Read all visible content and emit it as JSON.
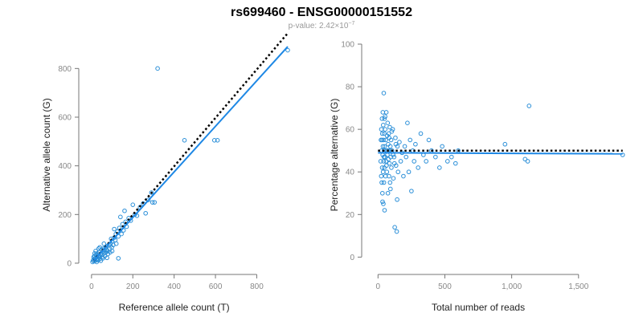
{
  "title": "rs699460 - ENSG00000151552",
  "subtitle": {
    "prefix": "p-value: 2.42×10",
    "exponent": "−7"
  },
  "colors": {
    "points": "#2b8fd8",
    "fit": "#1e88e5",
    "reference": "#000000",
    "axis": "#777777",
    "tick_text": "#888888",
    "subtitle": "#999999"
  },
  "chart_data": [
    {
      "type": "scatter",
      "title": "",
      "xlabel": "Reference allele count (T)",
      "ylabel": "Alternative allele count (G)",
      "xlim": [
        -15,
        950
      ],
      "ylim": [
        -10,
        900
      ],
      "xticks": [
        0,
        200,
        400,
        600,
        800
      ],
      "xtick_labels": [
        "0",
        "200",
        "400",
        "600",
        "800"
      ],
      "yticks": [
        0,
        200,
        400,
        600,
        800
      ],
      "ytick_labels": [
        "0",
        "200",
        "400",
        "600",
        "800"
      ],
      "grid": false,
      "fit_line": {
        "x": [
          10,
          950
        ],
        "y": [
          10,
          890
        ]
      },
      "reference_line": {
        "x": [
          10,
          950
        ],
        "y": [
          10,
          945
        ]
      },
      "points": [
        [
          5,
          5
        ],
        [
          8,
          12
        ],
        [
          10,
          25
        ],
        [
          12,
          8
        ],
        [
          14,
          18
        ],
        [
          15,
          30
        ],
        [
          18,
          10
        ],
        [
          20,
          22
        ],
        [
          22,
          35
        ],
        [
          25,
          15
        ],
        [
          26,
          28
        ],
        [
          28,
          40
        ],
        [
          30,
          20
        ],
        [
          32,
          12
        ],
        [
          33,
          32
        ],
        [
          35,
          25
        ],
        [
          38,
          45
        ],
        [
          40,
          30
        ],
        [
          42,
          18
        ],
        [
          45,
          38
        ],
        [
          48,
          55
        ],
        [
          50,
          35
        ],
        [
          52,
          25
        ],
        [
          55,
          48
        ],
        [
          58,
          60
        ],
        [
          60,
          40
        ],
        [
          62,
          52
        ],
        [
          65,
          30
        ],
        [
          68,
          65
        ],
        [
          70,
          45
        ],
        [
          72,
          55
        ],
        [
          75,
          70
        ],
        [
          78,
          50
        ],
        [
          80,
          38
        ],
        [
          85,
          75
        ],
        [
          88,
          60
        ],
        [
          90,
          45
        ],
        [
          92,
          80
        ],
        [
          95,
          100
        ],
        [
          98,
          65
        ],
        [
          100,
          90
        ],
        [
          105,
          75
        ],
        [
          110,
          105
        ],
        [
          115,
          95
        ],
        [
          118,
          120
        ],
        [
          120,
          80
        ],
        [
          125,
          130
        ],
        [
          130,
          110
        ],
        [
          135,
          145
        ],
        [
          140,
          190
        ],
        [
          145,
          120
        ],
        [
          150,
          160
        ],
        [
          155,
          135
        ],
        [
          160,
          215
        ],
        [
          165,
          170
        ],
        [
          170,
          150
        ],
        [
          180,
          185
        ],
        [
          190,
          175
        ],
        [
          200,
          240
        ],
        [
          210,
          200
        ],
        [
          220,
          195
        ],
        [
          235,
          230
        ],
        [
          250,
          245
        ],
        [
          262,
          205
        ],
        [
          275,
          260
        ],
        [
          290,
          290
        ],
        [
          295,
          250
        ],
        [
          305,
          250
        ],
        [
          320,
          800
        ],
        [
          450,
          505
        ],
        [
          595,
          505
        ],
        [
          610,
          505
        ],
        [
          950,
          875
        ],
        [
          20,
          50
        ],
        [
          35,
          60
        ],
        [
          55,
          20
        ],
        [
          75,
          22
        ],
        [
          130,
          20
        ],
        [
          100,
          50
        ],
        [
          60,
          80
        ],
        [
          15,
          40
        ],
        [
          25,
          5
        ],
        [
          45,
          10
        ],
        [
          40,
          65
        ],
        [
          110,
          140
        ]
      ]
    },
    {
      "type": "scatter",
      "title": "",
      "xlabel": "Total number of reads",
      "ylabel": "Percentage alternative (G)",
      "xlim": [
        -50,
        1850
      ],
      "ylim": [
        -4,
        100
      ],
      "xticks": [
        0,
        500,
        1000,
        1500
      ],
      "xtick_labels": [
        "0",
        "500",
        "1,000",
        "1,500"
      ],
      "yticks": [
        0,
        20,
        40,
        60,
        80,
        100
      ],
      "ytick_labels": [
        "0",
        "20",
        "40",
        "60",
        "80",
        "100"
      ],
      "grid": false,
      "fit_line": {
        "x": [
          0,
          1830
        ],
        "y": [
          49,
          48.5
        ]
      },
      "reference_line": {
        "x": [
          0,
          1830
        ],
        "y": [
          50,
          50
        ]
      },
      "points": [
        [
          20,
          45
        ],
        [
          22,
          55
        ],
        [
          24,
          38
        ],
        [
          25,
          60
        ],
        [
          27,
          50
        ],
        [
          28,
          35
        ],
        [
          30,
          65
        ],
        [
          31,
          42
        ],
        [
          32,
          58
        ],
        [
          33,
          30
        ],
        [
          35,
          48
        ],
        [
          36,
          68
        ],
        [
          37,
          52
        ],
        [
          38,
          40
        ],
        [
          39,
          62
        ],
        [
          40,
          25
        ],
        [
          41,
          55
        ],
        [
          42,
          45
        ],
        [
          43,
          77
        ],
        [
          44,
          35
        ],
        [
          45,
          50
        ],
        [
          46,
          58
        ],
        [
          47,
          42
        ],
        [
          48,
          65
        ],
        [
          49,
          22
        ],
        [
          50,
          52
        ],
        [
          52,
          47
        ],
        [
          54,
          60
        ],
        [
          56,
          38
        ],
        [
          58,
          55
        ],
        [
          60,
          45
        ],
        [
          62,
          68
        ],
        [
          64,
          50
        ],
        [
          66,
          40
        ],
        [
          68,
          57
        ],
        [
          70,
          48
        ],
        [
          72,
          63
        ],
        [
          74,
          30
        ],
        [
          76,
          53
        ],
        [
          78,
          46
        ],
        [
          80,
          58
        ],
        [
          82,
          38
        ],
        [
          84,
          50
        ],
        [
          86,
          44
        ],
        [
          88,
          61
        ],
        [
          90,
          35
        ],
        [
          92,
          52
        ],
        [
          95,
          47
        ],
        [
          98,
          55
        ],
        [
          100,
          42
        ],
        [
          105,
          50
        ],
        [
          110,
          60
        ],
        [
          115,
          37
        ],
        [
          120,
          47
        ],
        [
          125,
          14
        ],
        [
          130,
          56
        ],
        [
          135,
          43
        ],
        [
          140,
          12
        ],
        [
          145,
          52
        ],
        [
          150,
          40
        ],
        [
          160,
          54
        ],
        [
          170,
          45
        ],
        [
          180,
          49
        ],
        [
          190,
          38
        ],
        [
          200,
          52
        ],
        [
          210,
          47
        ],
        [
          220,
          63
        ],
        [
          230,
          40
        ],
        [
          240,
          55
        ],
        [
          250,
          31
        ],
        [
          260,
          50
        ],
        [
          270,
          45
        ],
        [
          280,
          53
        ],
        [
          300,
          42
        ],
        [
          320,
          58
        ],
        [
          340,
          48
        ],
        [
          360,
          45
        ],
        [
          380,
          55
        ],
        [
          400,
          50
        ],
        [
          430,
          47
        ],
        [
          460,
          42
        ],
        [
          480,
          52
        ],
        [
          520,
          45
        ],
        [
          550,
          47
        ],
        [
          580,
          44
        ],
        [
          600,
          50
        ],
        [
          950,
          53
        ],
        [
          1100,
          46
        ],
        [
          1120,
          45
        ],
        [
          1130,
          71
        ],
        [
          1830,
          48
        ],
        [
          30,
          55
        ],
        [
          34,
          26
        ],
        [
          44,
          47
        ],
        [
          53,
          66
        ],
        [
          63,
          43
        ],
        [
          73,
          50
        ],
        [
          83,
          56
        ],
        [
          93,
          32
        ],
        [
          103,
          59
        ],
        [
          113,
          48
        ],
        [
          123,
          44
        ],
        [
          133,
          53
        ],
        [
          143,
          27
        ]
      ]
    }
  ]
}
